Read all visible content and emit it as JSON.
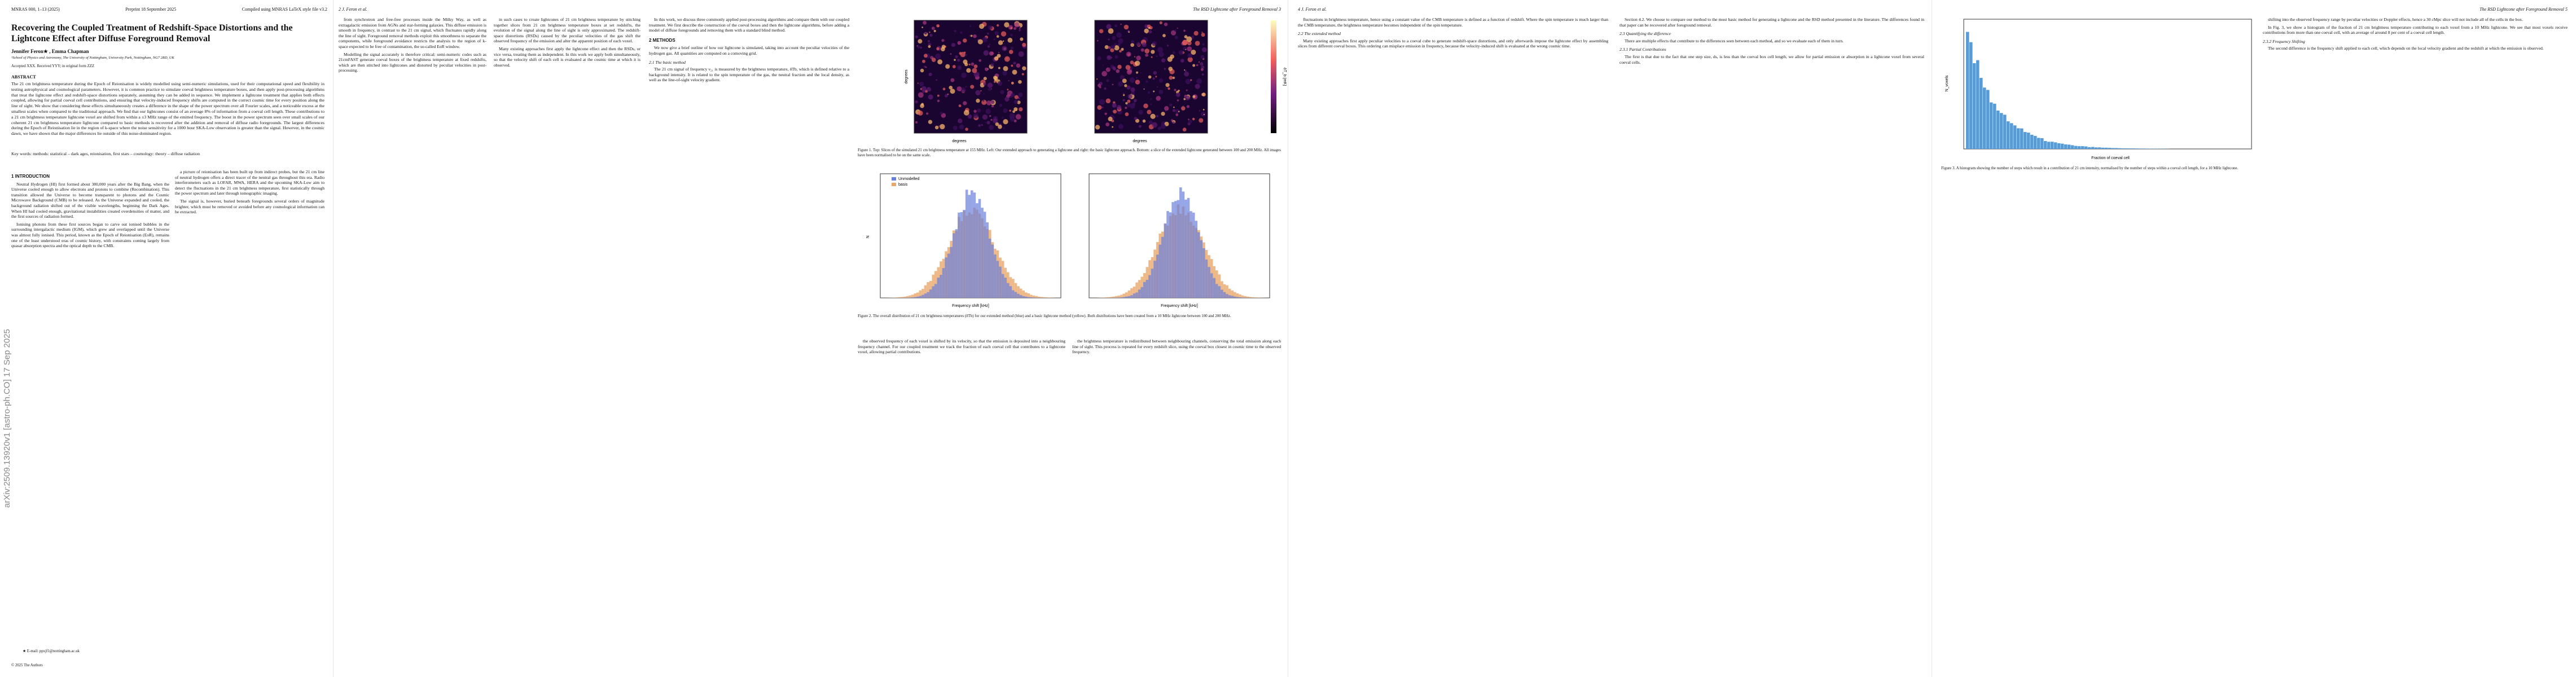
{
  "page1": {
    "running_head": [
      "MNRAS 000, 1–13 (2025)",
      "Preprint 18 September 2025",
      "Compiled using MNRAS LaTeX style file v3.2"
    ],
    "title": "Recovering the Coupled Treatment of Redshift-Space Distortions and the Lightcone Effect after Diffuse Foreground Removal",
    "authors": "Jennifer Feron★ , Emma Chapman",
    "affiliation": "¹School of Physics and Astronomy, The University of Nottingham, University Park, Nottingham, NG7 2RD, UK",
    "accepted": "Accepted XXX. Received YYY; in original form ZZZ",
    "abstract_heading": "ABSTRACT",
    "abstract": "The 21 cm brightness temperature during the Epoch of Reionisation is widely modelled using semi-numeric simulations, used for their computational speed and flexibility in testing astrophysical and cosmological parameters. However, it is common practice to simulate coeval brightness temperature boxes, and then apply post-processing algorithms that treat the lightcone effect and redshift-space distortions separately, assuming they can be added in sequence. We implement a lightcone treatment that applies both effects coupled, allowing for partial coeval cell contributions, and ensuring that velocity-induced frequency shifts are computed in the correct cosmic time for every position along the line of sight. We show that considering these effects simultaneously creates a difference in the shape of the power spectrum over all Fourier scales, and a noticeable excess at the smallest scales when compared to the traditional approach. We find that our lightcones consist of an average 8% of information from a coeval cell length. These contributions to a 21 cm brightness temperature lightcone voxel are shifted from within a ±3 MHz range of the emitted frequency. The boost in the power spectrum seen over small scales of our coherent 21 cm brightness temperature lightcone compared to basic methods is recovered after the addition and removal of diffuse radio foregrounds. The largest differences during the Epoch of Reionisation lie in the region of k-space where the noise sensitivity for a 1000 hour SKA-Low observation is greater than the signal. However, in the cosmic dawn, we have shown that the major differences lie outside of this noise-dominated region.",
    "keywords": "Key words: methods: statistical – dark ages, reionisation, first stars – cosmology: theory – diffuse radiation",
    "arxiv": "arXiv:2509.13920v1 [astro-ph.CO] 17 Sep 2025",
    "columns": [
      [
        {
          "heading": "1 INTRODUCTION"
        },
        {
          "text": "Neutral Hydrogen (HI) first formed about 380,000 years after the Big Bang, when the Universe cooled enough to allow electrons and protons to combine (Recombination). This transition allowed the Universe to become transparent to photons and the Cosmic Microwave Background (CMB) to be released. As the Universe expanded and cooled, the background radiation shifted out of the visible wavelengths, beginning the Dark Ages. When HI had cooled enough, gravitational instabilities created overdensities of matter, and the first sources of radiation formed."
        },
        {
          "text": "Ionising photons from these first sources began to carve out ionised bubbles in the surrounding intergalactic medium (IGM), which grew and overlapped until the Universe was almost fully ionised. This period, known as the Epoch of Reionisation (EoR), remains one of the least understood eras of cosmic history, with constraints coming largely from quasar absorption spectra and the optical depth to the CMB."
        }
      ],
      [
        {
          "text": "a picture of reionisation has been built up from indirect probes, but the 21 cm line of neutral hydrogen offers a direct tracer of the neutral gas throughout this era. Radio interferometers such as LOFAR, MWA, HERA and the upcoming SKA-Low aim to detect the fluctuations in the 21 cm brightness temperature, first statistically through the power spectrum and later through tomographic imaging."
        },
        {
          "text": "The signal is, however, buried beneath foregrounds several orders of magnitude brighter, which must be removed or avoided before any cosmological information can be extracted."
        }
      ]
    ],
    "footnote": "★ E-mail: ppxjf1@nottingham.ac.uk",
    "copyright": "© 2025 The Authors"
  },
  "page23": {
    "left_head": "2    J. Feron et al.",
    "right_head": "The RSD Lightcone after Foreground Removal    3",
    "columns": [
      [
        {
          "text": "from synchrotron and free-free processes inside the Milky Way, as well as extragalactic emission from AGNs and star-forming galaxies. This diffuse emission is smooth in frequency, in contrast to the 21 cm signal, which fluctuates rapidly along the line of sight. Foreground removal methods exploit this smoothness to separate the components, while foreground avoidance restricts the analysis to the region of k-space expected to be free of contamination, the so-called EoR window."
        },
        {
          "text": "Modelling the signal accurately is therefore critical: semi-numeric codes such as 21cmFAST generate coeval boxes of the brightness temperature at fixed redshifts, which are then stitched into lightcones and distorted by peculiar velocities in post-processing."
        }
      ],
      [
        {
          "text": "in such cases to create lightcones of 21 cm brightness temperature by stitching together slices from 21 cm brightness temperature boxes at set redshifts, the evolution of the signal along the line of sight is only approximated. The redshift-space distortions (RSDs) caused by the peculiar velocities of the gas shift the observed frequency of the emission and alter the apparent position of each voxel."
        },
        {
          "text": "Many existing approaches first apply the lightcone effect and then the RSDs, or vice versa, treating them as independent. In this work we apply both simultaneously, so that the velocity shift of each cell is evaluated at the cosmic time at which it is observed."
        }
      ],
      [
        {
          "text": "In this work, we discuss three commonly applied post-processing algorithms and compare them with our coupled treatment. We first describe the construction of the coeval boxes and then the lightcone algorithms, before adding a model of diffuse foregrounds and removing them with a standard blind method."
        },
        {
          "heading": "2 METHODS"
        },
        {
          "text": "We now give a brief outline of how our lightcone is simulated, taking into account the peculiar velocities of the hydrogen gas. All quantities are computed on a comoving grid."
        },
        {
          "subheading": "2.1 The basic method"
        },
        {
          "text": "The 21 cm signal of frequency ν₂₁ is measured by the brightness temperature, δTb, which is defined relative to a background intensity. It is related to the spin temperature of the gas, the neutral fraction and the local density, as well as the line-of-sight velocity gradient."
        }
      ],
      [
        {
          "text": "the observed frequency of each voxel is shifted by its velocity, so that the emission is deposited into a neighbouring frequency channel. For our coupled treatment we track the fraction of each coeval cell that contributes to a lightcone voxel, allowing partial contributions."
        }
      ],
      [
        {
          "text": "the brightness temperature is redistributed between neighbouring channels, conserving the total emission along each line of sight. This process is repeated for every redshift slice, using the coeval box closest in cosmic time to the observed frequency."
        }
      ]
    ],
    "figure1": {
      "xlabel": "degrees",
      "ylabel": "degrees",
      "cbar_label": "δT_b [mK]",
      "caption": "Figure 1. Top: Slices of the simulated 21 cm brightness temperature at 155 MHz. Left: Our extended approach to generating a lightcone and right: the basic lightcone approach. Bottom: a slice of the extended lightcone generated between 100 and 200 MHz. All images have been normalised to be on the same scale."
    },
    "figure2": {
      "legend": [
        "Unmodelled",
        "basis"
      ],
      "xlabel": "Frequency shift [kHz]",
      "ylabel": "N",
      "caption": "Figure 2. The overall distribution of 21 cm brightness temperatures (δTb) for our extended method (blue) and a basic lightcone method (yellow). Both distributions have been created from a 10 MHz lightcone between 100 and 200 MHz."
    }
  },
  "page45": {
    "left_head": "4    J. Feron et al.",
    "right_head": "The RSD Lightcone after Foreground Removal    5",
    "columns": [
      [
        {
          "text": "fluctuations in brightness temperature, hence using a constant value of the CMB temperature is defined as a function of redshift. Where the spin temperature is much larger than the CMB temperature, the brightness temperature becomes independent of the spin temperature."
        },
        {
          "subheading": "2.2 The extended method"
        },
        {
          "text": "Many existing approaches first apply peculiar velocities to a coeval cube to generate redshift-space distortions, and only afterwards impose the lightcone effect by assembling slices from different coeval boxes. This ordering can misplace emission in frequency, because the velocity-induced shift is evaluated at the wrong cosmic time."
        }
      ],
      [
        {
          "text": "Section 4.2. We choose to compare our method to the most basic method for generating a lightcone and the RSD method presented in the literature. The differences found in that paper can be recovered after foreground removal."
        },
        {
          "subheading": "2.3 Quantifying the difference"
        },
        {
          "text": "There are multiple effects that contribute to the differences seen between each method, and so we evaluate each of them in turn."
        },
        {
          "subheading": "2.3.1 Partial Contributions"
        },
        {
          "text": "The first is that due to the fact that one step size, ds, is less than the coeval box cell length, we allow for partial emission or absorption in a lightcone voxel from several coeval cells."
        }
      ],
      [
        {
          "text": "shifting into the observed frequency range by peculiar velocities or Doppler effects, hence a 30 cMpc slice will not include all of the cells in the box."
        },
        {
          "text": "In Fig. 3, we show a histogram of the fraction of 21 cm brightness temperature contributing to each voxel from a 10 MHz lightcone. We see that most voxels receive contributions from more than one coeval cell, with an average of around 8 per cent of a coeval cell length."
        },
        {
          "subheading": "2.3.2 Frequency Shifting"
        },
        {
          "text": "The second difference is the frequency shift applied to each cell, which depends on the local velocity gradient and the redshift at which the emission is observed."
        }
      ]
    ],
    "figure3": {
      "xlabel": "Fraction of coeval cell",
      "ylabel": "N_voxels",
      "caption": "Figure 3. A histogram showing the number of steps which result in a contribution of 21 cm intensity, normalised by the number of steps within a coeval cell length, for a 10 MHz lightcone."
    }
  }
}
